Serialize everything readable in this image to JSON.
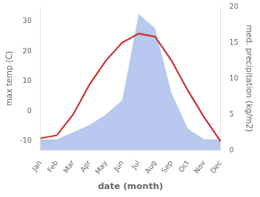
{
  "chart_data": {
    "type": "line",
    "xlabel": "date (month)",
    "ylabel": "max temp (C)",
    "y2label": "med. precipitation (kg/m2)",
    "categories": [
      "Jan",
      "Feb",
      "Mar",
      "Apr",
      "May",
      "Jun",
      "Jul",
      "Aug",
      "Sep",
      "Oct",
      "Nov",
      "Dec"
    ],
    "series": [
      {
        "type": "area",
        "axis": "y2",
        "color": "#b8c8ee",
        "values": [
          1.5,
          1.5,
          2.5,
          3.5,
          5,
          7,
          19,
          17,
          8,
          3,
          1.5,
          1.5
        ]
      },
      {
        "type": "line",
        "color": "#c83232",
        "values": [
          -9,
          -8,
          -1,
          9,
          17,
          23,
          26,
          25,
          17,
          7,
          -2,
          -10
        ]
      }
    ],
    "ylim": [
      -13,
      35
    ],
    "yticks": [
      -10,
      0,
      10,
      20,
      30
    ],
    "y2lim": [
      0,
      20
    ],
    "y2ticks": [
      0,
      5,
      10,
      15,
      20
    ],
    "grid": false
  }
}
